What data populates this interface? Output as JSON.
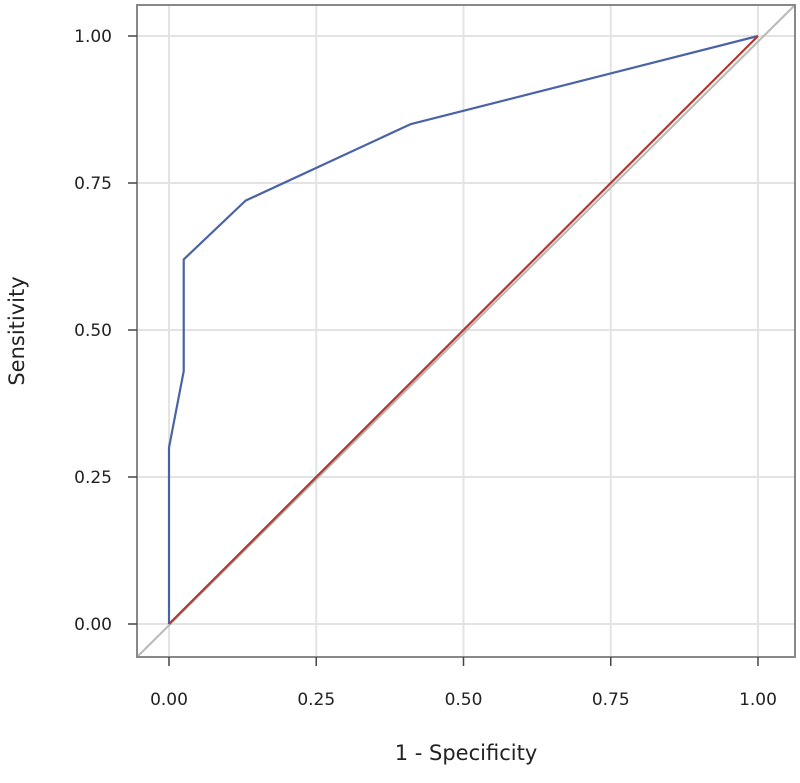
{
  "chart_data": {
    "type": "line",
    "title": "",
    "xlabel": "1 - Specificity",
    "ylabel": "Sensitivity",
    "xlim": [
      0,
      1
    ],
    "ylim": [
      0,
      1
    ],
    "xticks": [
      "0.00",
      "0.25",
      "0.50",
      "0.75",
      "1.00"
    ],
    "yticks": [
      "0.00",
      "0.25",
      "0.50",
      "0.75",
      "1.00"
    ],
    "grid": true,
    "legend": "none",
    "series": [
      {
        "color": "#4a62a6",
        "x": [
          0.0,
          0.0,
          0.0,
          0.025,
          0.025,
          0.13,
          0.41,
          1.0
        ],
        "y": [
          0.0,
          0.0,
          0.3,
          0.43,
          0.62,
          0.72,
          0.85,
          1.0
        ]
      },
      {
        "color": "#b03a2e",
        "x": [
          0.0,
          1.0
        ],
        "y": [
          0.0,
          1.0
        ]
      }
    ],
    "colors": {
      "grid": "#e3e3e3",
      "frame": "#888888",
      "diagonal_reference": "#b8b8b8"
    }
  }
}
